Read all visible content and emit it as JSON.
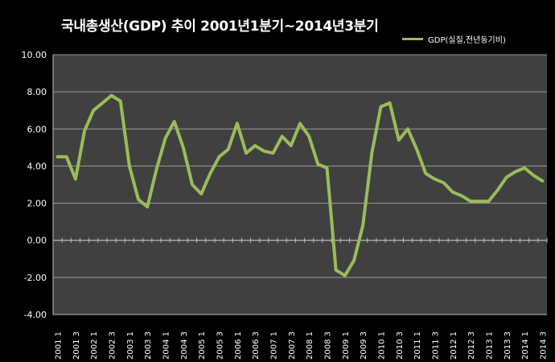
{
  "chart_data": {
    "type": "line",
    "title": "국내총생산(GDP) 추이  2001년1분기~2014년3분기",
    "legend_position": "top-right",
    "grid": true,
    "ylim": [
      -4,
      10
    ],
    "yticks": [
      "10.00",
      "8.00",
      "6.00",
      "4.00",
      "2.00",
      "0.00",
      "-2.00",
      "-4.00"
    ],
    "x": [
      "2001 1",
      "2001 2",
      "2001 3",
      "2001 4",
      "2002 1",
      "2002 2",
      "2002 3",
      "2002 4",
      "2003 1",
      "2003 2",
      "2003 3",
      "2003 4",
      "2004 1",
      "2004 2",
      "2004 3",
      "2004 4",
      "2005 1",
      "2005 2",
      "2005 3",
      "2005 4",
      "2006 1",
      "2006 2",
      "2006 3",
      "2006 4",
      "2007 1",
      "2007 2",
      "2007 3",
      "2007 4",
      "2008 1",
      "2008 2",
      "2008 3",
      "2008 4",
      "2009 1",
      "2009 2",
      "2009 3",
      "2009 4",
      "2010 1",
      "2010 2",
      "2010 3",
      "2010 4",
      "2011 1",
      "2011 2",
      "2011 3",
      "2011 4",
      "2012 1",
      "2012 2",
      "2012 3",
      "2012 4",
      "2013 1",
      "2013 2",
      "2013 3",
      "2013 4",
      "2014 1",
      "2014 2",
      "2014 3"
    ],
    "x_tick_labels": [
      "2001 1",
      "2001 3",
      "2002 1",
      "2002 3",
      "2003 1",
      "2003 3",
      "2004 1",
      "2004 3",
      "2005 1",
      "2005 3",
      "2006 1",
      "2006 3",
      "2007 1",
      "2007 3",
      "2008 1",
      "2008 3",
      "2009 1",
      "2009 3",
      "2010 1",
      "2010 3",
      "2011 1",
      "2011 3",
      "2012 1",
      "2012 3",
      "2013 1",
      "2013 3",
      "2014 1",
      "2014 3"
    ],
    "series": [
      {
        "name": "GDP(실질,전년동기비)",
        "color": "#9bbb59",
        "values": [
          4.5,
          4.5,
          3.3,
          5.9,
          7.0,
          7.4,
          7.8,
          7.5,
          4.0,
          2.2,
          1.8,
          3.8,
          5.5,
          6.4,
          5.0,
          3.0,
          2.5,
          3.6,
          4.5,
          4.9,
          6.3,
          4.7,
          5.1,
          4.8,
          4.7,
          5.6,
          5.1,
          6.3,
          5.6,
          4.1,
          3.9,
          -1.6,
          -1.9,
          -1.1,
          0.8,
          4.7,
          7.2,
          7.4,
          5.4,
          6.0,
          4.9,
          3.6,
          3.3,
          3.1,
          2.6,
          2.4,
          2.1,
          2.1,
          2.1,
          2.7,
          3.4,
          3.7,
          3.9,
          3.5,
          3.2
        ]
      }
    ]
  },
  "colors": {
    "background": "#000000",
    "plot_area": "#404040",
    "grid": "#9a9a9a",
    "text": "#ffffff"
  }
}
